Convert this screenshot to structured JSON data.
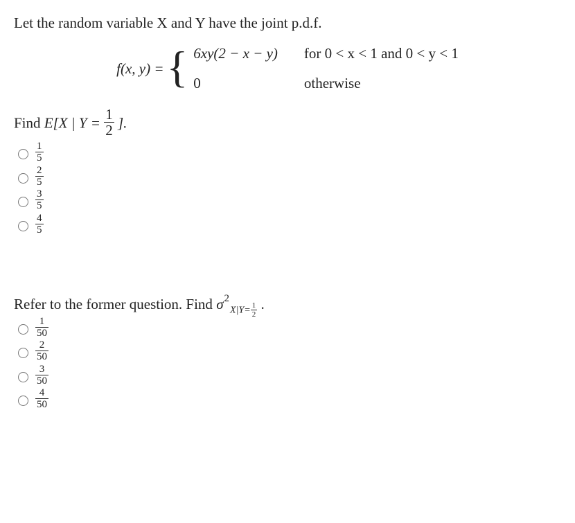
{
  "q1": {
    "lead": "Let the random variable X and Y have the joint p.d.f.",
    "lhs": "f(x, y) = ",
    "case1_expr": "6xy(2 − x − y)",
    "case1_cond": "for 0 < x < 1 and 0 < y < 1",
    "case2_expr": "0",
    "case2_cond": "otherwise",
    "find_pre": "Find ",
    "find_expr_lhs": "E[X | Y = ",
    "find_frac_num": "1",
    "find_frac_den": "2",
    "find_expr_rhs": "].",
    "options": [
      {
        "num": "1",
        "den": "5"
      },
      {
        "num": "2",
        "den": "5"
      },
      {
        "num": "3",
        "den": "5"
      },
      {
        "num": "4",
        "den": "5"
      }
    ]
  },
  "q2": {
    "lead": "Refer to the former question. Find ",
    "sigma": "σ",
    "exp2": "2",
    "sub_pre": "X|Y=",
    "sub_num": "1",
    "sub_den": "2",
    "period": ".",
    "options": [
      {
        "num": "1",
        "den": "50"
      },
      {
        "num": "2",
        "den": "50"
      },
      {
        "num": "3",
        "den": "50"
      },
      {
        "num": "4",
        "den": "50"
      }
    ]
  },
  "colors": {
    "text": "#222222",
    "bg": "#ffffff",
    "radio_border": "#777777"
  }
}
